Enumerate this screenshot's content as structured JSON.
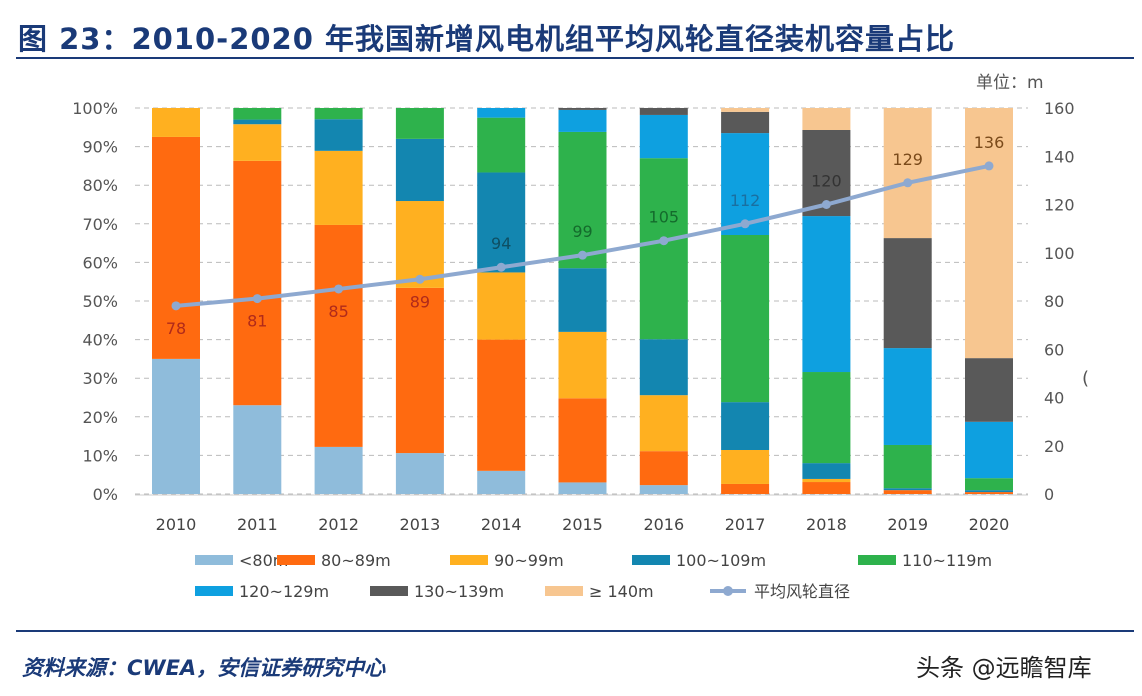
{
  "chart_data": {
    "type": "bar",
    "stacked": true,
    "title": "图 23：2010-2020 年我国新增风电机组平均风轮直径装机容量占比",
    "unit_label": "单位：m",
    "right_axis_fragment": "(",
    "categories": [
      "2010",
      "2011",
      "2012",
      "2013",
      "2014",
      "2015",
      "2016",
      "2017",
      "2018",
      "2019",
      "2020"
    ],
    "y_left": {
      "range": [
        0,
        100
      ],
      "ticks": [
        "0%",
        "10%",
        "20%",
        "30%",
        "40%",
        "50%",
        "60%",
        "70%",
        "80%",
        "90%",
        "100%"
      ]
    },
    "y_right": {
      "range": [
        0,
        160
      ],
      "ticks": [
        "0",
        "20",
        "40",
        "60",
        "80",
        "100",
        "120",
        "140",
        "160"
      ]
    },
    "grid": "horizontal dashed",
    "legend_position": "bottom",
    "series": [
      {
        "name": "<80m",
        "color": "#8fbcdb",
        "values": [
          35,
          23,
          12.2,
          10.6,
          6,
          3,
          2.3,
          0,
          0,
          0,
          0
        ]
      },
      {
        "name": "80~89m",
        "color": "#ff6a10",
        "values": [
          57.5,
          63.3,
          57.5,
          42.8,
          34,
          21.8,
          8.8,
          2.6,
          3.1,
          1,
          0.5
        ]
      },
      {
        "name": "90~99m",
        "color": "#ffb020",
        "values": [
          7.5,
          9.5,
          19.2,
          22.5,
          17.4,
          17.2,
          14.5,
          8.8,
          0.8,
          0,
          0
        ]
      },
      {
        "name": "100~109m",
        "color": "#1386b0",
        "values": [
          0,
          1.2,
          8.2,
          16.1,
          25.9,
          16.5,
          14.5,
          12.4,
          4.1,
          0.5,
          0.5
        ]
      },
      {
        "name": "110~119m",
        "color": "#2eb24c",
        "values": [
          0,
          3,
          2.9,
          8,
          14.2,
          35.3,
          46.9,
          43.3,
          23.6,
          11.2,
          3.1
        ]
      },
      {
        "name": "120~129m",
        "color": "#0ea0e0",
        "values": [
          0,
          0,
          0,
          0,
          2.5,
          5.7,
          11.2,
          26.4,
          40.4,
          25.1,
          14.6
        ]
      },
      {
        "name": "130~139m",
        "color": "#595959",
        "values": [
          0,
          0,
          0,
          0,
          0,
          0.5,
          1.8,
          5.5,
          22.3,
          28.5,
          16.5
        ]
      },
      {
        "name": "≥ 140m",
        "color": "#f7c690",
        "values": [
          0,
          0,
          0,
          0,
          0,
          0,
          0,
          1,
          5.7,
          33.7,
          64.8
        ]
      }
    ],
    "line": {
      "name": "平均风轮直径",
      "color": "#8ea9d0",
      "axis": "right",
      "values": [
        78,
        81,
        85,
        89,
        94,
        99,
        105,
        112,
        120,
        129,
        136
      ],
      "label_colors": [
        "#b02a1a",
        "#b02a1a",
        "#b02a1a",
        "#b02a1a",
        "#0e4f63",
        "#146b2c",
        "#146b2c",
        "#1a6fa0",
        "#333333",
        "#7a4a1a",
        "#7a4a1a"
      ]
    }
  },
  "footer": {
    "source": "资料来源：CWEA，安信证券研究中心",
    "watermark": "头条 @远瞻智库"
  }
}
